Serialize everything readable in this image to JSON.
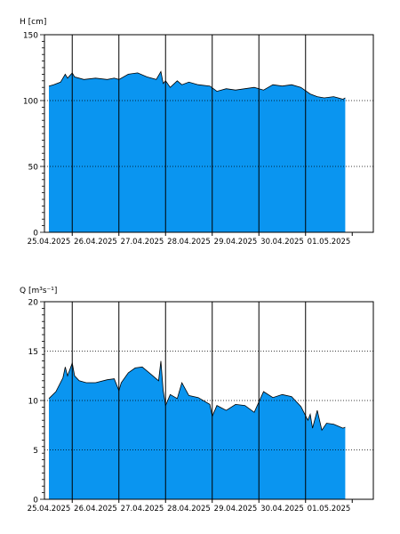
{
  "colors": {
    "fill": "#0a95f0",
    "outline": "#000000",
    "background": "#ffffff"
  },
  "chart_data": [
    {
      "type": "area",
      "ylabel": "H [cm]",
      "ylim": [
        0,
        150
      ],
      "yticks": [
        0,
        50,
        100,
        150
      ],
      "grid": "horizontal dotted at labeled ticks; vertical solid at day boundaries",
      "x_categories": [
        "25.04.2025",
        "26.04.2025",
        "27.04.2025",
        "28.04.2025",
        "29.04.2025",
        "30.04.2025",
        "01.05.2025"
      ],
      "x_range_days": [
        0,
        7.0
      ],
      "x_days": [
        0.0,
        0.1,
        0.25,
        0.35,
        0.4,
        0.5,
        0.55,
        0.75,
        1.0,
        1.25,
        1.4,
        1.5,
        1.7,
        1.9,
        2.1,
        2.3,
        2.4,
        2.45,
        2.5,
        2.6,
        2.75,
        2.85,
        3.0,
        3.2,
        3.45,
        3.6,
        3.8,
        4.0,
        4.2,
        4.4,
        4.6,
        4.8,
        5.0,
        5.2,
        5.4,
        5.6,
        5.75,
        5.9,
        6.1,
        6.3,
        6.35
      ],
      "values": [
        111,
        112,
        114,
        120,
        117,
        121,
        118,
        116,
        117,
        116,
        117,
        116,
        120,
        121,
        118,
        116,
        122,
        113,
        115,
        110,
        115,
        112,
        114,
        112,
        111,
        107,
        109,
        108,
        109,
        110,
        108,
        112,
        111,
        112,
        110,
        105,
        103,
        102,
        103,
        101,
        102
      ]
    },
    {
      "type": "area",
      "ylabel": "Q [m³s⁻¹]",
      "ylim": [
        0,
        20
      ],
      "yticks": [
        0,
        5,
        10,
        15,
        20
      ],
      "grid": "horizontal dotted at labeled ticks; vertical solid at day boundaries",
      "x_categories": [
        "25.04.2025",
        "26.04.2025",
        "27.04.2025",
        "28.04.2025",
        "29.04.2025",
        "30.04.2025",
        "01.05.2025"
      ],
      "x_range_days": [
        0,
        7.0
      ],
      "x_days": [
        0.0,
        0.15,
        0.3,
        0.35,
        0.4,
        0.5,
        0.55,
        0.65,
        0.8,
        1.0,
        1.25,
        1.4,
        1.5,
        1.55,
        1.7,
        1.85,
        2.0,
        2.2,
        2.35,
        2.4,
        2.45,
        2.5,
        2.6,
        2.75,
        2.85,
        3.0,
        3.2,
        3.45,
        3.5,
        3.6,
        3.8,
        4.0,
        4.2,
        4.4,
        4.6,
        4.8,
        5.0,
        5.2,
        5.4,
        5.55,
        5.6,
        5.65,
        5.75,
        5.85,
        5.95,
        6.1,
        6.3,
        6.35
      ],
      "values": [
        10.2,
        10.9,
        12.3,
        13.4,
        12.5,
        13.8,
        12.5,
        12.0,
        11.8,
        11.8,
        12.1,
        12.2,
        11.0,
        11.8,
        12.8,
        13.3,
        13.4,
        12.6,
        12.0,
        14.0,
        11.0,
        9.5,
        10.6,
        10.2,
        11.8,
        10.5,
        10.3,
        9.6,
        8.4,
        9.5,
        9.0,
        9.6,
        9.5,
        8.8,
        10.9,
        10.3,
        10.6,
        10.4,
        9.4,
        8.0,
        8.6,
        7.2,
        9.0,
        7.0,
        7.7,
        7.6,
        7.2,
        7.3
      ]
    }
  ]
}
